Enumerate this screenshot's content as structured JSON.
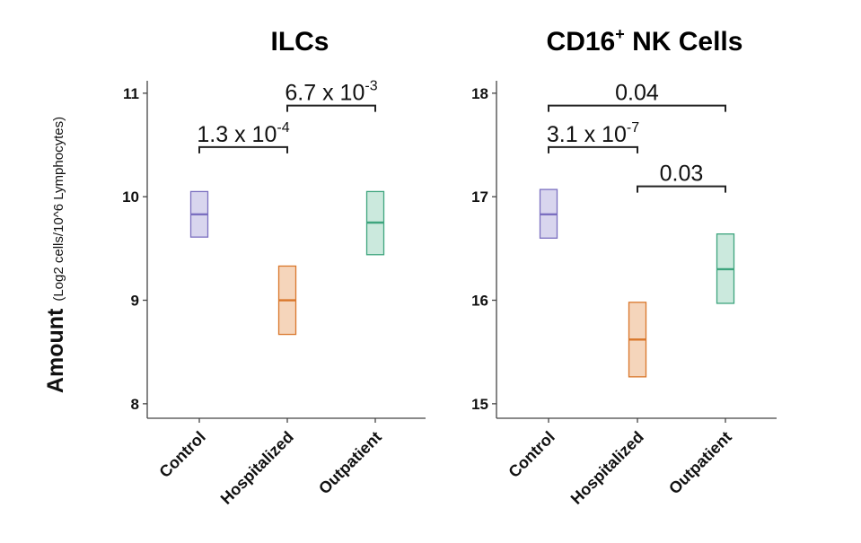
{
  "figure": {
    "ylabel_main": "Amount",
    "ylabel_sub": "(Log2 cells/10^6 Lymphocytes)"
  },
  "chart_data": [
    {
      "type": "crossbar",
      "title_parts": [
        "ILCs"
      ],
      "categories": [
        "Control",
        "Hospitalized",
        "Outpatient"
      ],
      "colors": [
        "#7B6FC0",
        "#D9772B",
        "#3EA57E"
      ],
      "fills": [
        "#D8D5EE",
        "#F5D5BB",
        "#CBE9DD"
      ],
      "median": [
        9.83,
        9.0,
        9.75
      ],
      "lower": [
        9.61,
        8.67,
        9.44
      ],
      "upper": [
        10.05,
        9.33,
        10.05
      ],
      "yticks": [
        8,
        9,
        10,
        11
      ],
      "ylim": [
        7.86,
        11.12
      ],
      "ylabel": "",
      "xlabel": "",
      "comparisons": [
        {
          "from": 0,
          "to": 1,
          "y": 10.48,
          "label": "1.3 x 10",
          "exp": "-4"
        },
        {
          "from": 1,
          "to": 2,
          "y": 10.88,
          "label": "6.7 x 10",
          "exp": "-3"
        }
      ]
    },
    {
      "type": "crossbar",
      "title_parts": [
        "CD16",
        "+",
        " NK Cells"
      ],
      "categories": [
        "Control",
        "Hospitalized",
        "Outpatient"
      ],
      "colors": [
        "#7B6FC0",
        "#D9772B",
        "#3EA57E"
      ],
      "fills": [
        "#D8D5EE",
        "#F5D5BB",
        "#CBE9DD"
      ],
      "median": [
        16.83,
        15.62,
        16.3
      ],
      "lower": [
        16.6,
        15.26,
        15.97
      ],
      "upper": [
        17.07,
        15.98,
        16.64
      ],
      "yticks": [
        15,
        16,
        17,
        18
      ],
      "ylim": [
        14.86,
        18.12
      ],
      "ylabel": "",
      "xlabel": "",
      "comparisons": [
        {
          "from": 0,
          "to": 2,
          "y": 17.88,
          "label": "0.04",
          "exp": ""
        },
        {
          "from": 0,
          "to": 1,
          "y": 17.48,
          "label": "3.1 x 10",
          "exp": "-7"
        },
        {
          "from": 1,
          "to": 2,
          "y": 17.1,
          "label": "0.03",
          "exp": ""
        }
      ]
    }
  ]
}
